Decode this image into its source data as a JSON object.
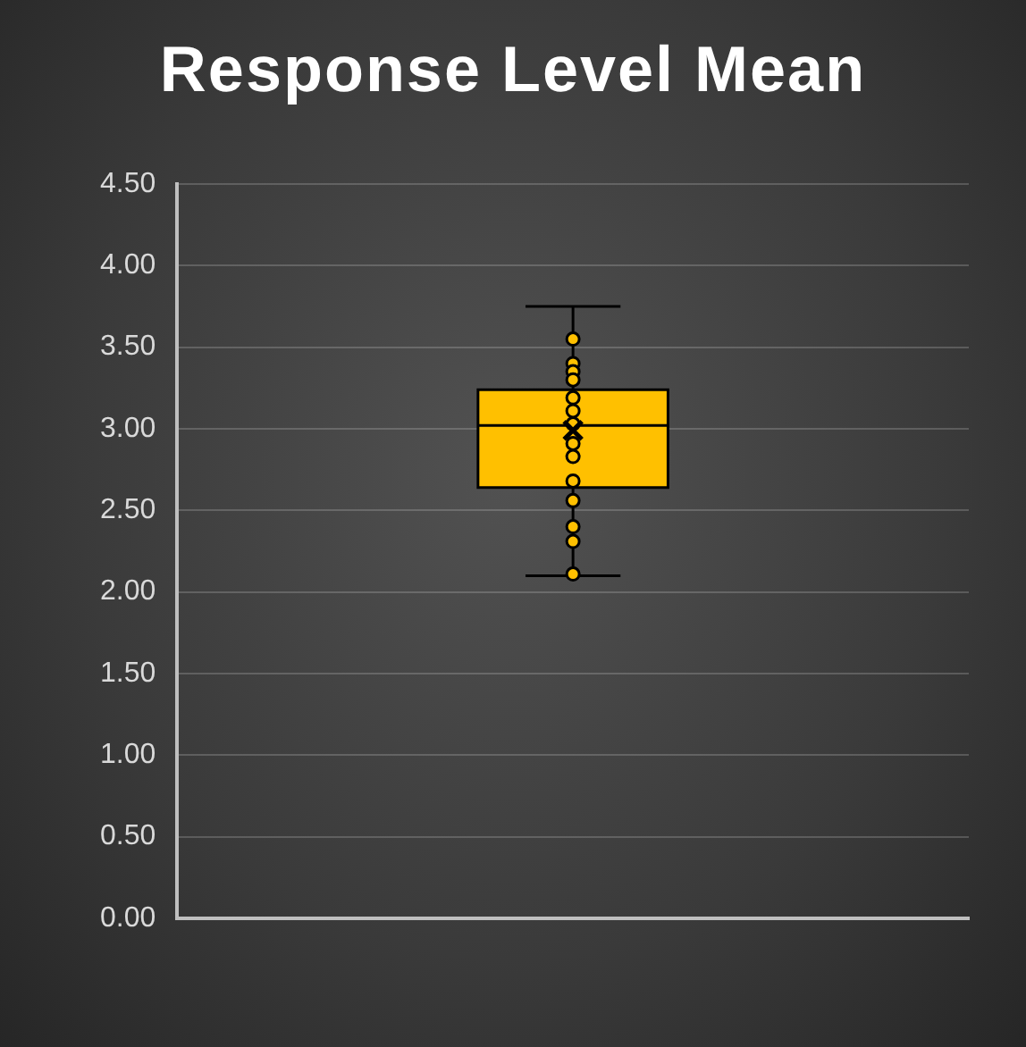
{
  "chart_data": {
    "type": "box",
    "title": "Response Level Mean",
    "categories": [
      null
    ],
    "boxes": [
      {
        "low": 2.1,
        "q1": 2.64,
        "median": 3.02,
        "q3": 3.24,
        "high": 3.75,
        "mean": 2.99,
        "outliers": [
          3.55,
          3.4,
          3.35,
          3.3,
          3.19,
          3.11,
          3.03,
          2.91,
          2.83,
          2.68,
          2.56,
          2.4,
          2.31,
          2.11
        ]
      }
    ],
    "color": "#ffc000",
    "ylim": [
      0,
      4.5
    ],
    "yticks": [
      {
        "value": 0,
        "label": "0.00"
      },
      {
        "value": 0.5,
        "label": "0.50"
      },
      {
        "value": 1,
        "label": "1.00"
      },
      {
        "value": 1.5,
        "label": "1.50"
      },
      {
        "value": 2,
        "label": "2.00"
      },
      {
        "value": 2.5,
        "label": "2.50"
      },
      {
        "value": 3,
        "label": "3.00"
      },
      {
        "value": 3.5,
        "label": "3.50"
      },
      {
        "value": 4,
        "label": "4.00"
      },
      {
        "value": 4.5,
        "label": "4.50"
      }
    ],
    "grid": "y",
    "tick_labels": "y"
  }
}
